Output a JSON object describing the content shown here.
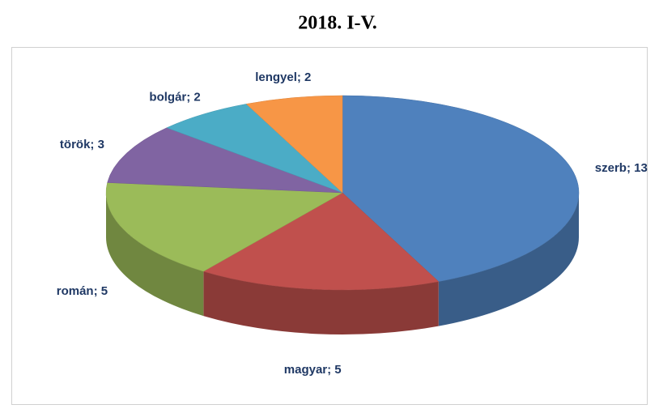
{
  "chart_data": {
    "type": "pie",
    "title": "2018. I-V.",
    "values": [
      13,
      5,
      5,
      3,
      2,
      2
    ],
    "value_labels": [
      "szerb; 13",
      "magyar; 5",
      "román; 5",
      "török; 3",
      "bolgár; 2",
      "lengyel; 2"
    ],
    "colors": [
      "#4f81bd",
      "#c0504d",
      "#9bbb59",
      "#8064a2",
      "#4bacc6",
      "#f79646"
    ]
  }
}
